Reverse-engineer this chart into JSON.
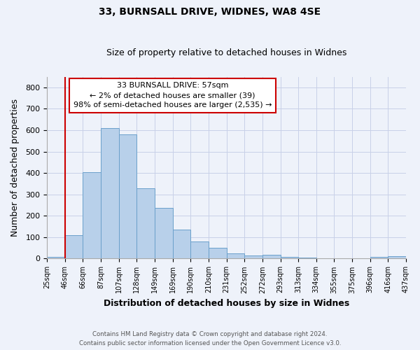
{
  "title1": "33, BURNSALL DRIVE, WIDNES, WA8 4SE",
  "title2": "Size of property relative to detached houses in Widnes",
  "xlabel": "Distribution of detached houses by size in Widnes",
  "ylabel": "Number of detached properties",
  "bin_labels": [
    "25sqm",
    "46sqm",
    "66sqm",
    "87sqm",
    "107sqm",
    "128sqm",
    "149sqm",
    "169sqm",
    "190sqm",
    "210sqm",
    "231sqm",
    "252sqm",
    "272sqm",
    "293sqm",
    "313sqm",
    "334sqm",
    "355sqm",
    "375sqm",
    "396sqm",
    "416sqm",
    "437sqm"
  ],
  "bar_values": [
    8,
    108,
    403,
    610,
    580,
    330,
    237,
    135,
    80,
    52,
    25,
    15,
    18,
    8,
    4,
    1,
    0,
    0,
    8,
    10
  ],
  "bar_color": "#b8d0ea",
  "bar_edge_color": "#6aa0cb",
  "red_line_x": 1.0,
  "annotation_lines": [
    "33 BURNSALL DRIVE: 57sqm",
    "← 2% of detached houses are smaller (39)",
    "98% of semi-detached houses are larger (2,535) →"
  ],
  "annotation_box_color": "#ffffff",
  "annotation_box_edge": "#cc0000",
  "ylim": [
    0,
    850
  ],
  "yticks": [
    0,
    100,
    200,
    300,
    400,
    500,
    600,
    700,
    800
  ],
  "footer1": "Contains HM Land Registry data © Crown copyright and database right 2024.",
  "footer2": "Contains public sector information licensed under the Open Government Licence v3.0.",
  "bg_color": "#eef2fa"
}
